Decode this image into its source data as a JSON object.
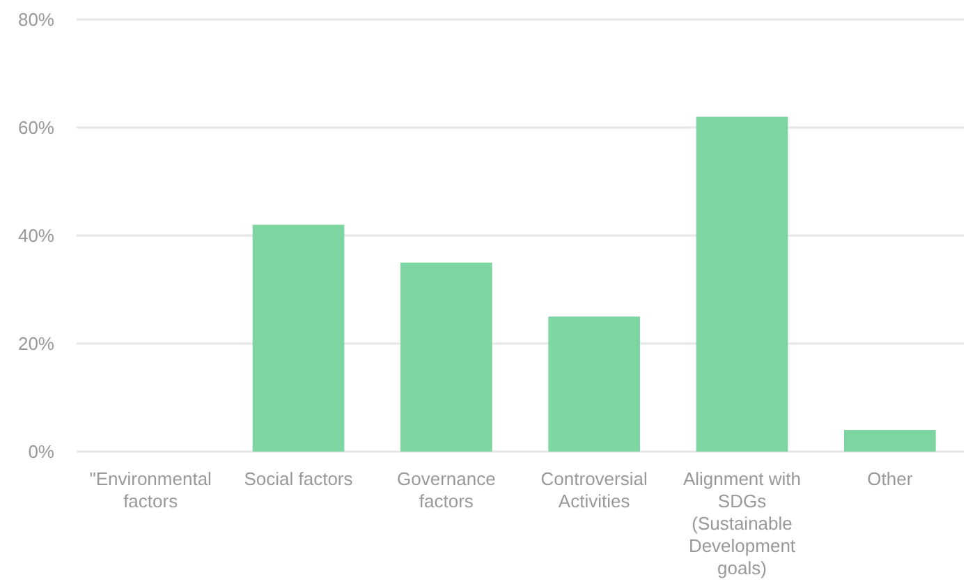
{
  "chart_data": {
    "type": "bar",
    "categories": [
      "\"Environmental factors",
      "Social factors",
      "Governance factors",
      "Controversial Activities",
      "Alignment with SDGs (Sustainable Development goals)",
      "Other"
    ],
    "values": [
      0,
      42,
      35,
      25,
      62,
      4
    ],
    "color": "#7dd6a2",
    "ylim": [
      0,
      80
    ],
    "yticks": [
      {
        "value": 0,
        "label": "0%"
      },
      {
        "value": 20,
        "label": "20%"
      },
      {
        "value": 40,
        "label": "40%"
      },
      {
        "value": 60,
        "label": "60%"
      },
      {
        "value": 80,
        "label": "80%"
      }
    ],
    "grid": "y"
  }
}
